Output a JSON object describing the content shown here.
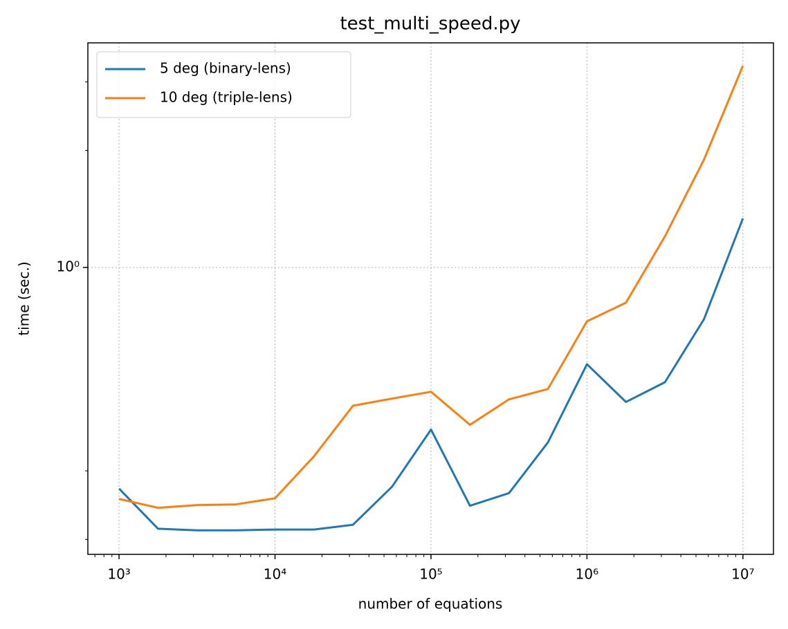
{
  "chart_data": {
    "type": "line",
    "title": "test_multi_speed.py",
    "xlabel": "number of equations",
    "ylabel": "time (sec.)",
    "x": [
      1000,
      1778,
      3162,
      5623,
      10000,
      17783,
      31623,
      56234,
      100000,
      177828,
      316228,
      562341,
      1000000,
      1778279,
      3162278,
      5623413,
      10000000
    ],
    "series": [
      {
        "name": "5 deg (binary-lens)",
        "color": "#1f77b4",
        "values": [
          0.27,
          0.213,
          0.211,
          0.211,
          0.212,
          0.212,
          0.218,
          0.273,
          0.383,
          0.244,
          0.263,
          0.355,
          0.564,
          0.451,
          0.507,
          0.736,
          1.337
        ]
      },
      {
        "name": "10 deg (triple-lens)",
        "color": "#ff7f0e",
        "values": [
          0.254,
          0.241,
          0.245,
          0.246,
          0.255,
          0.327,
          0.441,
          0.46,
          0.479,
          0.394,
          0.458,
          0.487,
          0.727,
          0.812,
          1.202,
          1.892,
          3.3
        ]
      }
    ],
    "xscale": "log",
    "yscale": "log",
    "xlim": [
      631,
      15700000
    ],
    "ylim": [
      0.183,
      3.78
    ],
    "xticks": [
      {
        "value": 1000,
        "label": "10³"
      },
      {
        "value": 10000,
        "label": "10⁴"
      },
      {
        "value": 100000,
        "label": "10⁵"
      },
      {
        "value": 1000000,
        "label": "10⁶"
      },
      {
        "value": 10000000,
        "label": "10⁷"
      }
    ],
    "xminorticks": [
      700,
      800,
      900,
      2000,
      3000,
      4000,
      5000,
      6000,
      7000,
      8000,
      9000,
      20000,
      30000,
      40000,
      50000,
      60000,
      70000,
      80000,
      90000,
      200000,
      300000,
      400000,
      500000,
      600000,
      700000,
      800000,
      900000,
      2000000,
      3000000,
      4000000,
      5000000,
      6000000,
      7000000,
      8000000,
      9000000
    ],
    "yticks": [
      {
        "value": 1,
        "label": "10⁰"
      }
    ],
    "yminorticks": [
      0.2,
      0.3,
      2,
      3
    ],
    "grid": true,
    "legend": "upper left"
  }
}
